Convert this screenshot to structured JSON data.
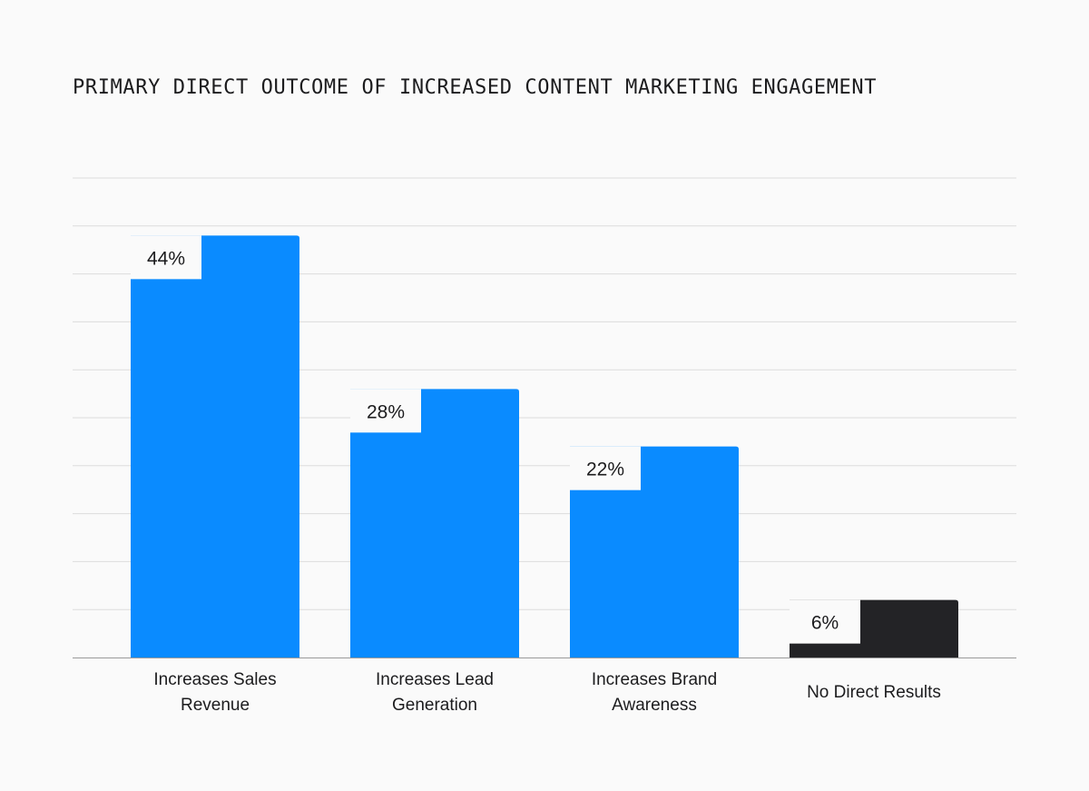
{
  "chart_data": {
    "type": "bar",
    "title": "PRIMARY DIRECT OUTCOME OF INCREASED CONTENT MARKETING ENGAGEMENT",
    "xlabel": "",
    "ylabel": "",
    "ylim": [
      0,
      50
    ],
    "grid": true,
    "unit": "%",
    "categories": [
      [
        "Increases Sales",
        "Revenue"
      ],
      [
        "Increases Lead",
        "Generation"
      ],
      [
        "Increases Brand",
        "Awareness"
      ],
      [
        "No Direct Results"
      ]
    ],
    "values": [
      44,
      28,
      22,
      6
    ],
    "value_labels": [
      "44%",
      "28%",
      "22%",
      "6%"
    ],
    "colors": [
      "#0a8bff",
      "#0a8bff",
      "#0a8bff",
      "#232326"
    ]
  },
  "colors": {
    "accent": "#0a8bff",
    "dark": "#232326",
    "gridline": "#dcdcdc",
    "background": "#fafafa"
  }
}
